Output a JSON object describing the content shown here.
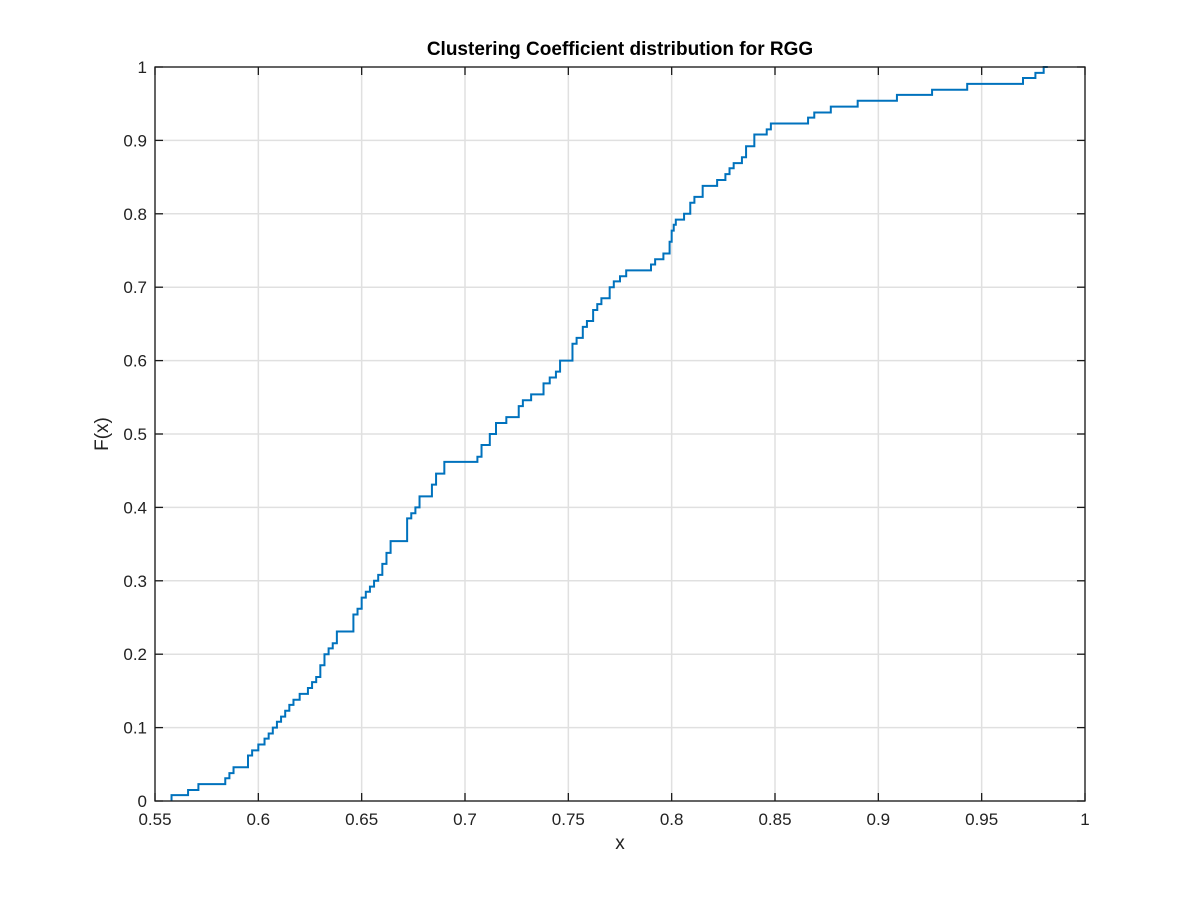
{
  "chart_data": {
    "type": "line",
    "title": "Clustering Coefficient distribution for RGG",
    "xlabel": "x",
    "ylabel": "F(x)",
    "xlim": [
      0.55,
      1
    ],
    "ylim": [
      0,
      1
    ],
    "xticks": [
      "0.55",
      "0.6",
      "0.65",
      "0.7",
      "0.75",
      "0.8",
      "0.85",
      "0.9",
      "0.95",
      "1"
    ],
    "yticks": [
      "0",
      "0.1",
      "0.2",
      "0.3",
      "0.4",
      "0.5",
      "0.6",
      "0.7",
      "0.8",
      "0.9",
      "1"
    ],
    "grid": true,
    "step": true,
    "series": [
      {
        "color": "#0072bd",
        "x": [
          0.558,
          0.558,
          0.566,
          0.571,
          0.584,
          0.586,
          0.588,
          0.591,
          0.595,
          0.597,
          0.6,
          0.603,
          0.605,
          0.607,
          0.609,
          0.611,
          0.613,
          0.615,
          0.617,
          0.62,
          0.624,
          0.626,
          0.628,
          0.63,
          0.632,
          0.634,
          0.636,
          0.638,
          0.646,
          0.648,
          0.65,
          0.652,
          0.654,
          0.656,
          0.658,
          0.66,
          0.662,
          0.664,
          0.672,
          0.674,
          0.676,
          0.678,
          0.684,
          0.686,
          0.69,
          0.706,
          0.708,
          0.712,
          0.715,
          0.72,
          0.726,
          0.728,
          0.732,
          0.738,
          0.741,
          0.744,
          0.746,
          0.749,
          0.752,
          0.754,
          0.757,
          0.759,
          0.762,
          0.764,
          0.766,
          0.77,
          0.772,
          0.775,
          0.778,
          0.79,
          0.792,
          0.796,
          0.799,
          0.8,
          0.801,
          0.802,
          0.806,
          0.809,
          0.811,
          0.815,
          0.822,
          0.826,
          0.828,
          0.83,
          0.834,
          0.836,
          0.84,
          0.846,
          0.848,
          0.866,
          0.869,
          0.877,
          0.89,
          0.909,
          0.926,
          0.943,
          0.97,
          0.976,
          0.98,
          0.982
        ],
        "y": [
          0,
          0.008,
          0.015,
          0.023,
          0.031,
          0.038,
          0.046,
          0.046,
          0.062,
          0.069,
          0.077,
          0.085,
          0.092,
          0.1,
          0.108,
          0.115,
          0.123,
          0.131,
          0.138,
          0.146,
          0.154,
          0.162,
          0.169,
          0.185,
          0.2,
          0.208,
          0.215,
          0.231,
          0.254,
          0.262,
          0.277,
          0.285,
          0.292,
          0.3,
          0.308,
          0.323,
          0.338,
          0.354,
          0.385,
          0.392,
          0.4,
          0.415,
          0.431,
          0.446,
          0.462,
          0.469,
          0.485,
          0.5,
          0.515,
          0.523,
          0.538,
          0.546,
          0.554,
          0.569,
          0.577,
          0.585,
          0.6,
          0.6,
          0.623,
          0.631,
          0.646,
          0.654,
          0.669,
          0.677,
          0.685,
          0.7,
          0.708,
          0.715,
          0.723,
          0.731,
          0.738,
          0.746,
          0.762,
          0.777,
          0.785,
          0.792,
          0.8,
          0.815,
          0.823,
          0.838,
          0.846,
          0.854,
          0.862,
          0.869,
          0.877,
          0.892,
          0.908,
          0.915,
          0.923,
          0.931,
          0.938,
          0.946,
          0.954,
          0.962,
          0.969,
          0.977,
          0.985,
          0.992,
          1.0,
          1.0
        ]
      }
    ]
  }
}
